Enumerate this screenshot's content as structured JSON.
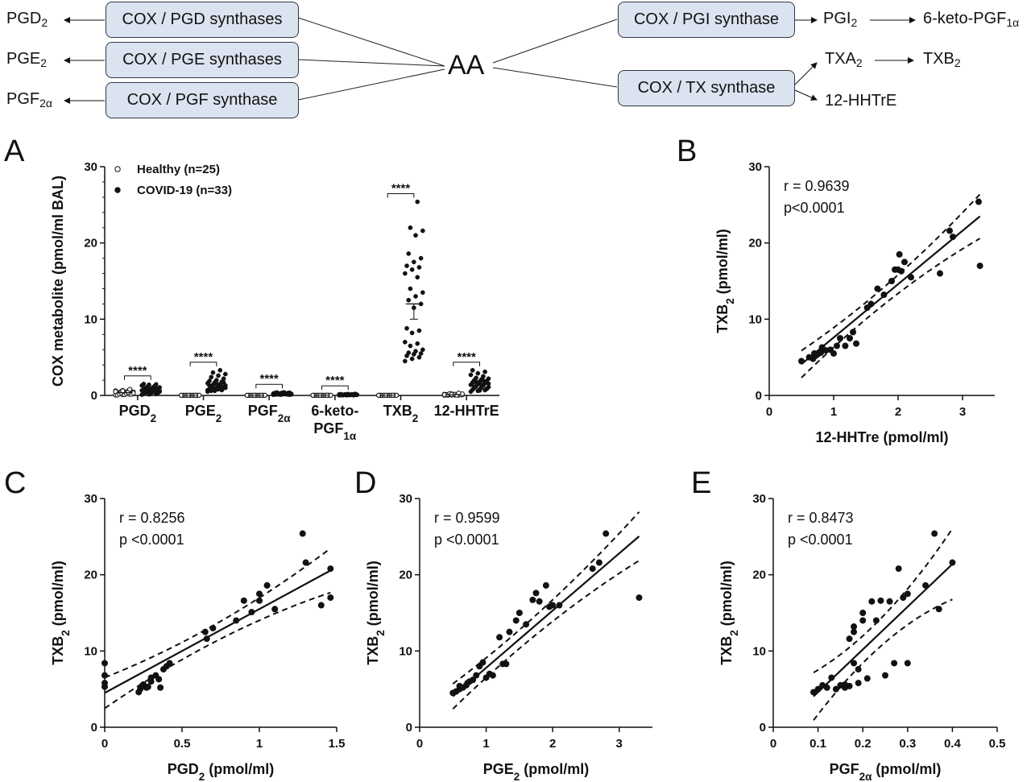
{
  "pathway": {
    "aa": "AA",
    "enzymes": {
      "pgd": "COX / PGD synthases",
      "pge": "COX / PGE synthases",
      "pgf": "COX / PGF synthase",
      "pgi": "COX / PGI synthase",
      "tx": "COX / TX synthase"
    },
    "products": {
      "pgd2": {
        "base": "PGD",
        "sub": "2"
      },
      "pge2": {
        "base": "PGE",
        "sub": "2"
      },
      "pgf2a": {
        "base": "PGF",
        "sub": "2α"
      },
      "pgi2": {
        "base": "PGI",
        "sub": "2"
      },
      "keto": {
        "base": "6-keto-PGF",
        "sub": "1α"
      },
      "txa2": {
        "base": "TXA",
        "sub": "2"
      },
      "txb2": {
        "base": "TXB",
        "sub": "2"
      },
      "hhtre": {
        "base": "12-HHTrE",
        "sub": ""
      }
    }
  },
  "colors": {
    "box_fill": "#dce3f0",
    "box_border": "#33373f",
    "ink": "#111111"
  },
  "chart_data": [
    {
      "panel": "A",
      "type": "scatter",
      "ylabel": "COX metabolite (pmol/ml BAL)",
      "ylim": [
        0,
        30
      ],
      "yticks": [
        0,
        10,
        20,
        30
      ],
      "legend": [
        {
          "name": "Healthy (n=25)",
          "marker": "open-circle"
        },
        {
          "name": "COVID-19 (n=33)",
          "marker": "filled-circle"
        }
      ],
      "legend_position": "top-left",
      "significance": "****",
      "categories": [
        {
          "base": "PGD",
          "sub": "2"
        },
        {
          "base": "PGE",
          "sub": "2"
        },
        {
          "base": "PGF",
          "sub": "2α"
        },
        {
          "base": "6-keto-",
          "line2": "PGF",
          "sub": "1α"
        },
        {
          "base": "TXB",
          "sub": "2"
        },
        {
          "base": "12-HHTrE",
          "sub": ""
        }
      ],
      "series": [
        {
          "name": "Healthy (n=25)",
          "values": [
            [
              0.05,
              0.1,
              0.15,
              0.2,
              0.25,
              0.3,
              0.35,
              0.4,
              0.45,
              0.5,
              0.55,
              0.6,
              0.65,
              0.7,
              0.05,
              0.1,
              0.15,
              0.2,
              0.25,
              0.3,
              0.35,
              0.4,
              0.5,
              0.6,
              0.8
            ],
            [
              0.02,
              0.02,
              0.02,
              0.02,
              0.02,
              0.02,
              0.02,
              0.02,
              0.02,
              0.02,
              0.02,
              0.02,
              0.02,
              0.02,
              0.02,
              0.02,
              0.02,
              0.02,
              0.02,
              0.02,
              0.02,
              0.02,
              0.02,
              0.02,
              0.02
            ],
            [
              0.02,
              0.02,
              0.02,
              0.02,
              0.02,
              0.02,
              0.02,
              0.02,
              0.02,
              0.02,
              0.02,
              0.02,
              0.02,
              0.02,
              0.02,
              0.02,
              0.02,
              0.02,
              0.02,
              0.02,
              0.02,
              0.02,
              0.02,
              0.02,
              0.02
            ],
            [
              0.02,
              0.02,
              0.02,
              0.02,
              0.02,
              0.02,
              0.02,
              0.02,
              0.02,
              0.02,
              0.02,
              0.02,
              0.02,
              0.02,
              0.02,
              0.02,
              0.02,
              0.02,
              0.02,
              0.02,
              0.02,
              0.02,
              0.02,
              0.02,
              0.02
            ],
            [
              0.02,
              0.02,
              0.02,
              0.02,
              0.02,
              0.02,
              0.02,
              0.02,
              0.02,
              0.02,
              0.02,
              0.02,
              0.02,
              0.02,
              0.02,
              0.02,
              0.02,
              0.02,
              0.02,
              0.02,
              0.02,
              0.02,
              0.02,
              0.02,
              0.02
            ],
            [
              0.03,
              0.05,
              0.07,
              0.1,
              0.12,
              0.15,
              0.03,
              0.05,
              0.07,
              0.1,
              0.12,
              0.15,
              0.2,
              0.03,
              0.05,
              0.07,
              0.1,
              0.12,
              0.15,
              0.2,
              0.25,
              0.05,
              0.1,
              0.15,
              0.3
            ]
          ]
        },
        {
          "name": "COVID-19 (n=33)",
          "values": [
            [
              0.1,
              0.15,
              0.2,
              0.25,
              0.3,
              0.35,
              0.4,
              0.45,
              0.5,
              0.55,
              0.6,
              0.65,
              0.7,
              0.75,
              0.8,
              0.85,
              0.9,
              0.95,
              1.0,
              1.05,
              1.1,
              1.2,
              1.3,
              1.4,
              1.45,
              1.5,
              0.2,
              0.3,
              0.4,
              0.5,
              0.6,
              0.7,
              0.8
            ],
            [
              0.5,
              0.6,
              0.7,
              0.8,
              0.9,
              1.0,
              1.1,
              1.2,
              1.3,
              1.4,
              1.5,
              1.6,
              1.7,
              1.8,
              1.9,
              2.0,
              2.2,
              2.4,
              2.6,
              2.8,
              3.0,
              3.3,
              0.7,
              0.9,
              1.1,
              1.3,
              1.5,
              1.7,
              0.6,
              0.8,
              1.0,
              1.2,
              1.4
            ],
            [
              0.09,
              0.1,
              0.12,
              0.14,
              0.15,
              0.16,
              0.18,
              0.2,
              0.22,
              0.24,
              0.25,
              0.26,
              0.28,
              0.3,
              0.32,
              0.35,
              0.36,
              0.38,
              0.4,
              0.12,
              0.15,
              0.18,
              0.2,
              0.22,
              0.25,
              0.28,
              0.3,
              0.1,
              0.14,
              0.17,
              0.19,
              0.21,
              0.23
            ],
            [
              0.02,
              0.03,
              0.04,
              0.05,
              0.06,
              0.07,
              0.08,
              0.09,
              0.1,
              0.11,
              0.12,
              0.13,
              0.14,
              0.15,
              0.16,
              0.18,
              0.2,
              0.03,
              0.05,
              0.07,
              0.09,
              0.11,
              0.13,
              0.04,
              0.06,
              0.08,
              0.1,
              0.12,
              0.05,
              0.07,
              0.09,
              0.11,
              0.14
            ],
            [
              4.5,
              4.8,
              5.0,
              5.2,
              5.4,
              5.5,
              5.6,
              5.8,
              6.0,
              6.5,
              6.8,
              7.0,
              8.2,
              8.5,
              8.8,
              11.5,
              12.0,
              12.5,
              13.0,
              13.5,
              14.0,
              15.5,
              16.0,
              16.5,
              16.8,
              17.0,
              17.5,
              18.0,
              18.6,
              21.0,
              21.6,
              22.0,
              25.4
            ],
            [
              0.5,
              0.6,
              0.7,
              0.75,
              0.8,
              0.9,
              1.0,
              1.05,
              1.1,
              1.2,
              1.3,
              1.4,
              1.5,
              1.6,
              1.7,
              1.8,
              1.9,
              2.0,
              2.1,
              2.2,
              2.3,
              2.5,
              2.7,
              2.9,
              3.1,
              3.3,
              0.65,
              0.85,
              1.15,
              1.35,
              1.55,
              1.75,
              1.95
            ]
          ]
        }
      ],
      "mean_sem": {
        "category": 4,
        "series": 1,
        "mean": 11.0,
        "sem": 1.0
      }
    },
    {
      "panel": "B",
      "type": "scatter",
      "xlabel": {
        "base": "12-HHTre  (pmol/ml)",
        "sub": ""
      },
      "ylabel": {
        "base": "TXB",
        "sub": "2",
        "rest": " (pmol/ml)"
      },
      "xlim": [
        0,
        3.5
      ],
      "xticks": [
        0,
        1,
        2,
        3
      ],
      "ylim": [
        0,
        30
      ],
      "yticks": [
        0,
        10,
        20,
        30
      ],
      "r_text": "r = 0.9639",
      "p_text": "p<0.0001",
      "fit": {
        "slope": 7.0,
        "intercept": 0.6
      },
      "ci_halfwidth": 2.0,
      "x": [
        0.5,
        0.62,
        0.68,
        0.7,
        0.72,
        0.75,
        0.8,
        0.82,
        0.88,
        0.95,
        1.0,
        1.05,
        1.1,
        1.18,
        1.25,
        1.3,
        1.35,
        1.52,
        1.58,
        1.68,
        1.78,
        1.9,
        1.95,
        2.0,
        2.02,
        2.05,
        2.1,
        2.2,
        2.65,
        2.8,
        2.85,
        3.25,
        3.27
      ],
      "y": [
        4.5,
        5.0,
        4.8,
        5.5,
        5.2,
        5.4,
        5.6,
        6.3,
        5.9,
        6.0,
        5.5,
        6.5,
        7.5,
        6.5,
        7.5,
        8.3,
        6.8,
        11.5,
        12.0,
        14.0,
        13.2,
        15.0,
        16.5,
        16.5,
        18.5,
        16.3,
        17.5,
        15.5,
        16.0,
        21.6,
        20.8,
        25.4,
        17.0
      ]
    },
    {
      "panel": "C",
      "type": "scatter",
      "xlabel": {
        "base": "PGD",
        "sub": "2",
        "rest": "  (pmol/ml)"
      },
      "ylabel": {
        "base": "TXB",
        "sub": "2",
        "rest": " (pmol/ml)"
      },
      "xlim": [
        0,
        1.5
      ],
      "xticks": [
        0,
        0.5,
        1.0,
        1.5
      ],
      "ylim": [
        0,
        30
      ],
      "yticks": [
        0,
        10,
        20,
        30
      ],
      "r_text": "r =  0.8256",
      "p_text": "p <0.0001",
      "fit": {
        "slope": 11.0,
        "intercept": 4.5
      },
      "ci_halfwidth": 2.0,
      "x": [
        0.0,
        0.0,
        0.0,
        0.0,
        0.22,
        0.23,
        0.24,
        0.25,
        0.27,
        0.28,
        0.3,
        0.3,
        0.33,
        0.35,
        0.36,
        0.38,
        0.4,
        0.42,
        0.65,
        0.66,
        0.7,
        0.85,
        0.9,
        0.95,
        1.0,
        1.05,
        1.1,
        1.28,
        1.3,
        1.4,
        1.46,
        1.46,
        1.0
      ],
      "y": [
        8.4,
        6.8,
        5.8,
        5.3,
        4.6,
        5.0,
        5.4,
        5.6,
        5.2,
        5.3,
        6.0,
        6.5,
        6.8,
        6.3,
        5.2,
        7.6,
        8.0,
        8.4,
        12.5,
        11.6,
        13.0,
        14.0,
        16.6,
        15.1,
        16.6,
        18.6,
        15.5,
        25.4,
        21.6,
        16.0,
        20.8,
        17.0,
        17.5
      ]
    },
    {
      "panel": "D",
      "type": "scatter",
      "xlabel": {
        "base": "PGE",
        "sub": "2",
        "rest": "  (pmol/ml)"
      },
      "ylabel": {
        "base": "TXB",
        "sub": "2",
        "rest": " (pmol/ml)"
      },
      "xlim": [
        0,
        3.5
      ],
      "xticks": [
        0,
        1,
        2,
        3
      ],
      "ylim": [
        0,
        30
      ],
      "yticks": [
        0,
        10,
        20,
        30
      ],
      "r_text": "r = 0.9599",
      "p_text": "p <0.0001",
      "fit": {
        "slope": 7.5,
        "intercept": 0.3
      },
      "ci_halfwidth": 2.2,
      "x": [
        0.5,
        0.55,
        0.6,
        0.65,
        0.7,
        0.72,
        0.75,
        0.8,
        0.9,
        0.95,
        1.0,
        1.05,
        1.1,
        1.2,
        1.25,
        1.3,
        1.35,
        1.45,
        1.5,
        1.6,
        1.7,
        1.75,
        1.8,
        1.9,
        1.95,
        2.0,
        2.1,
        2.6,
        2.7,
        2.8,
        3.3,
        0.6,
        0.85
      ],
      "y": [
        4.5,
        4.7,
        5.0,
        5.2,
        5.5,
        5.8,
        6.0,
        6.2,
        8.0,
        8.5,
        6.5,
        7.0,
        6.8,
        11.8,
        8.3,
        8.3,
        12.5,
        14.0,
        15.0,
        13.5,
        16.7,
        17.6,
        16.5,
        18.6,
        15.8,
        16.0,
        16.0,
        20.8,
        21.6,
        25.4,
        17.0,
        5.4,
        6.8
      ]
    },
    {
      "panel": "E",
      "type": "scatter",
      "xlabel": {
        "base": "PGF",
        "sub": "2α",
        "rest": "  (pmol/ml)"
      },
      "ylabel": {
        "base": "TXB",
        "sub": "2",
        "rest": " (pmol/ml)"
      },
      "xlim": [
        0,
        0.5
      ],
      "xticks": [
        0.0,
        0.1,
        0.2,
        0.3,
        0.4,
        0.5
      ],
      "ylim": [
        0,
        30
      ],
      "yticks": [
        0,
        10,
        20,
        30
      ],
      "r_text": "r = 0.8473",
      "p_text": "p <0.0001",
      "fit": {
        "slope": 56.0,
        "intercept": -1.0
      },
      "ci_halfwidth": 3.2,
      "x": [
        0.09,
        0.1,
        0.11,
        0.12,
        0.13,
        0.14,
        0.15,
        0.16,
        0.17,
        0.17,
        0.18,
        0.18,
        0.18,
        0.19,
        0.19,
        0.2,
        0.2,
        0.21,
        0.22,
        0.23,
        0.24,
        0.25,
        0.26,
        0.27,
        0.28,
        0.29,
        0.3,
        0.3,
        0.34,
        0.36,
        0.37,
        0.4,
        0.16
      ],
      "y": [
        4.6,
        5.0,
        5.5,
        5.2,
        6.5,
        5.0,
        5.5,
        5.2,
        5.4,
        11.6,
        13.2,
        12.5,
        8.4,
        7.6,
        5.8,
        14.0,
        15.0,
        6.4,
        16.5,
        14.0,
        16.6,
        6.8,
        16.5,
        8.4,
        20.8,
        17.0,
        17.5,
        8.4,
        18.6,
        25.4,
        15.5,
        21.6,
        5.6
      ]
    }
  ]
}
